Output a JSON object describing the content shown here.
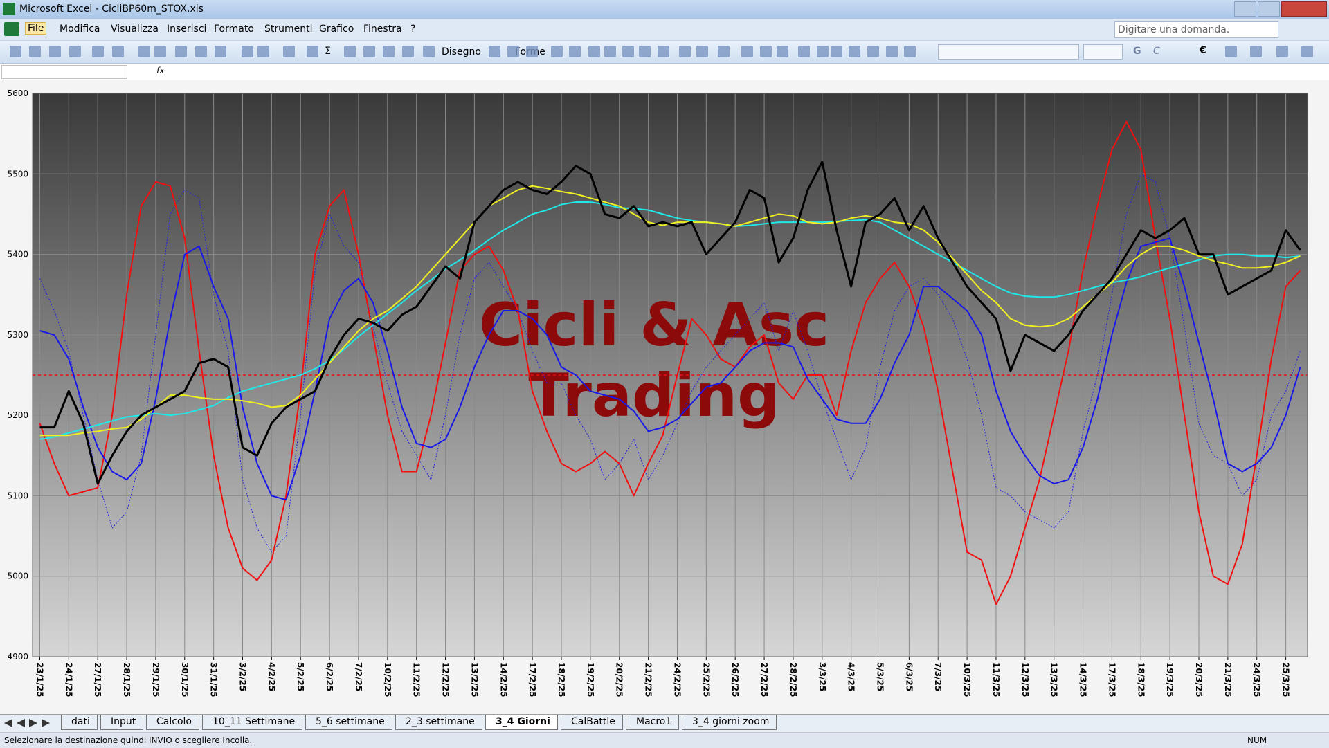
{
  "window": {
    "title": "Microsoft Excel - CicliBP60m_STOX.xls"
  },
  "menu": [
    "File",
    "Modifica",
    "Visualizza",
    "Inserisci",
    "Formato",
    "Strumenti",
    "Grafico",
    "Finestra",
    "?"
  ],
  "help_box": "Digitare una domanda.",
  "toolbar": {
    "sum": "Σ",
    "drawing": "Disegno",
    "shapes": "Forme",
    "bold": "G",
    "italic": "C",
    "euro": "€"
  },
  "formula_bar": {
    "fx": "fx"
  },
  "sheet_tabs": [
    "dati",
    "Input",
    "Calcolo",
    "10_11 Settimane",
    "5_6 settimane",
    "2_3 settimane",
    "3_4 Giorni",
    "CalBattle",
    "Macro1",
    "3_4 giorni zoom"
  ],
  "active_tab": 6,
  "status": {
    "message": "Selezionare la destinazione quindi INVIO o scegliere Incolla.",
    "num": "NUM"
  },
  "chart_data": {
    "type": "line",
    "annotations": [
      "Cicli & Asc",
      "Trading"
    ],
    "categories": [
      "23/1/25",
      null,
      "24/1/25",
      null,
      "27/1/25",
      null,
      "28/1/25",
      null,
      "29/1/25",
      null,
      "30/1/25",
      null,
      "31/1/25",
      null,
      "3/2/25",
      null,
      "4/2/25",
      null,
      "5/2/25",
      null,
      "6/2/25",
      null,
      "7/2/25",
      null,
      "10/2/25",
      null,
      "11/2/25",
      null,
      "12/2/25",
      null,
      "13/2/25",
      null,
      "14/2/25",
      null,
      "17/2/25",
      null,
      "18/2/25",
      null,
      "19/2/25",
      null,
      "20/2/25",
      null,
      "21/2/25",
      null,
      "24/2/25",
      null,
      "25/2/25",
      null,
      "26/2/25",
      null,
      "27/2/25",
      null,
      "28/2/25",
      null,
      "3/3/25",
      null,
      "4/3/25",
      null,
      "5/3/25",
      null,
      "6/3/25",
      null,
      "7/3/25",
      null,
      "10/3/25",
      null,
      "11/3/25",
      null,
      "12/3/25",
      null,
      "13/3/25",
      null,
      "14/3/25",
      null,
      "17/3/25",
      null,
      "18/3/25",
      null,
      "19/3/25",
      null,
      "20/3/25",
      null,
      "21/3/25",
      null,
      "24/3/25",
      null,
      "25/3/25",
      null
    ],
    "ylim": [
      4900,
      5600
    ],
    "yticks": [
      4900,
      5000,
      5100,
      5200,
      5300,
      5400,
      5500,
      5600
    ],
    "grid": true,
    "reference_line": {
      "value": 5250,
      "color": "#e81010"
    },
    "series": [
      {
        "color": "#2020e0",
        "dashed": true,
        "line_width": 1,
        "values": [
          5370,
          5330,
          5280,
          5200,
          5120,
          5060,
          5080,
          5150,
          5300,
          5450,
          5480,
          5470,
          5350,
          5280,
          5120,
          5060,
          5030,
          5050,
          5200,
          5380,
          5450,
          5410,
          5390,
          5310,
          5240,
          5180,
          5150,
          5120,
          5200,
          5300,
          5370,
          5390,
          5360,
          5330,
          5280,
          5240,
          5240,
          5200,
          5170,
          5120,
          5140,
          5170,
          5120,
          5150,
          5190,
          5230,
          5260,
          5280,
          5300,
          5320,
          5340,
          5280,
          5330,
          5280,
          5220,
          5170,
          5120,
          5160,
          5260,
          5330,
          5360,
          5370,
          5350,
          5320,
          5270,
          5200,
          5110,
          5100,
          5080,
          5070,
          5060,
          5080,
          5180,
          5250,
          5350,
          5450,
          5500,
          5490,
          5420,
          5310,
          5190,
          5150,
          5140,
          5100,
          5120,
          5200,
          5230,
          5280
        ]
      },
      {
        "color": "#f01010",
        "dashed": false,
        "line_width": 2,
        "values": [
          5190,
          5140,
          5100,
          5105,
          5110,
          5200,
          5350,
          5460,
          5490,
          5485,
          5420,
          5280,
          5150,
          5060,
          5010,
          4995,
          5020,
          5100,
          5230,
          5400,
          5460,
          5480,
          5400,
          5300,
          5200,
          5130,
          5130,
          5200,
          5290,
          5380,
          5400,
          5410,
          5380,
          5330,
          5230,
          5180,
          5140,
          5130,
          5140,
          5155,
          5140,
          5100,
          5140,
          5175,
          5250,
          5320,
          5300,
          5270,
          5260,
          5285,
          5300,
          5240,
          5220,
          5250,
          5250,
          5200,
          5280,
          5340,
          5370,
          5390,
          5360,
          5310,
          5230,
          5130,
          5030,
          5020,
          4965,
          5000,
          5060,
          5120,
          5200,
          5280,
          5380,
          5460,
          5530,
          5565,
          5530,
          5420,
          5320,
          5200,
          5080,
          5000,
          4990,
          5040,
          5150,
          5270,
          5360,
          5380
        ]
      },
      {
        "color": "#1818e8",
        "dashed": false,
        "line_width": 2,
        "values": [
          5305,
          5300,
          5270,
          5210,
          5160,
          5130,
          5120,
          5140,
          5220,
          5320,
          5400,
          5410,
          5360,
          5320,
          5210,
          5140,
          5100,
          5095,
          5150,
          5230,
          5320,
          5355,
          5370,
          5340,
          5280,
          5210,
          5165,
          5160,
          5170,
          5210,
          5260,
          5300,
          5330,
          5330,
          5320,
          5300,
          5260,
          5250,
          5230,
          5225,
          5220,
          5205,
          5180,
          5185,
          5195,
          5215,
          5235,
          5240,
          5260,
          5280,
          5290,
          5290,
          5285,
          5245,
          5220,
          5195,
          5190,
          5190,
          5220,
          5265,
          5300,
          5360,
          5360,
          5345,
          5330,
          5300,
          5230,
          5180,
          5150,
          5125,
          5115,
          5120,
          5160,
          5220,
          5300,
          5365,
          5410,
          5415,
          5420,
          5360,
          5290,
          5220,
          5140,
          5130,
          5140,
          5160,
          5200,
          5260
        ]
      },
      {
        "color": "#20e8e8",
        "dashed": false,
        "line_width": 2,
        "values": [
          5170,
          5173,
          5178,
          5183,
          5188,
          5193,
          5198,
          5200,
          5202,
          5200,
          5202,
          5207,
          5212,
          5222,
          5230,
          5235,
          5240,
          5245,
          5250,
          5258,
          5268,
          5282,
          5298,
          5312,
          5326,
          5340,
          5355,
          5368,
          5382,
          5393,
          5405,
          5418,
          5430,
          5440,
          5450,
          5455,
          5462,
          5465,
          5465,
          5462,
          5458,
          5457,
          5455,
          5450,
          5445,
          5442,
          5440,
          5438,
          5435,
          5436,
          5438,
          5440,
          5440,
          5440,
          5440,
          5441,
          5442,
          5443,
          5440,
          5430,
          5420,
          5410,
          5400,
          5390,
          5380,
          5370,
          5360,
          5352,
          5348,
          5347,
          5347,
          5350,
          5355,
          5360,
          5365,
          5368,
          5372,
          5378,
          5383,
          5388,
          5393,
          5398,
          5400,
          5400,
          5398,
          5398,
          5396,
          5398
        ]
      },
      {
        "color": "#f0f020",
        "dashed": false,
        "line_width": 2,
        "values": [
          5175,
          5175,
          5175,
          5178,
          5180,
          5183,
          5185,
          5195,
          5210,
          5225,
          5225,
          5222,
          5220,
          5220,
          5218,
          5215,
          5210,
          5212,
          5225,
          5245,
          5265,
          5285,
          5305,
          5320,
          5330,
          5345,
          5360,
          5380,
          5400,
          5420,
          5440,
          5460,
          5470,
          5480,
          5485,
          5482,
          5478,
          5475,
          5470,
          5465,
          5460,
          5450,
          5440,
          5436,
          5440,
          5440,
          5440,
          5438,
          5435,
          5440,
          5445,
          5450,
          5448,
          5440,
          5438,
          5440,
          5445,
          5448,
          5445,
          5440,
          5438,
          5430,
          5415,
          5395,
          5375,
          5355,
          5340,
          5320,
          5312,
          5310,
          5312,
          5320,
          5335,
          5350,
          5365,
          5385,
          5400,
          5410,
          5410,
          5405,
          5398,
          5392,
          5388,
          5383,
          5383,
          5385,
          5390,
          5398
        ]
      },
      {
        "color": "#000000",
        "dashed": false,
        "line_width": 3,
        "values": [
          5185,
          5185,
          5230,
          5190,
          5115,
          5150,
          5180,
          5200,
          5210,
          5220,
          5230,
          5265,
          5270,
          5260,
          5160,
          5150,
          5190,
          5210,
          5220,
          5230,
          5270,
          5300,
          5320,
          5315,
          5305,
          5325,
          5335,
          5360,
          5385,
          5370,
          5440,
          5460,
          5480,
          5490,
          5480,
          5475,
          5490,
          5510,
          5500,
          5450,
          5445,
          5460,
          5435,
          5440,
          5435,
          5440,
          5400,
          5420,
          5440,
          5480,
          5470,
          5390,
          5420,
          5480,
          5515,
          5430,
          5360,
          5440,
          5450,
          5470,
          5430,
          5460,
          5420,
          5390,
          5360,
          5340,
          5320,
          5255,
          5300,
          5290,
          5280,
          5300,
          5330,
          5350,
          5370,
          5400,
          5430,
          5420,
          5430,
          5445,
          5400,
          5400,
          5350,
          5360,
          5370,
          5380,
          5430,
          5405
        ]
      }
    ]
  }
}
